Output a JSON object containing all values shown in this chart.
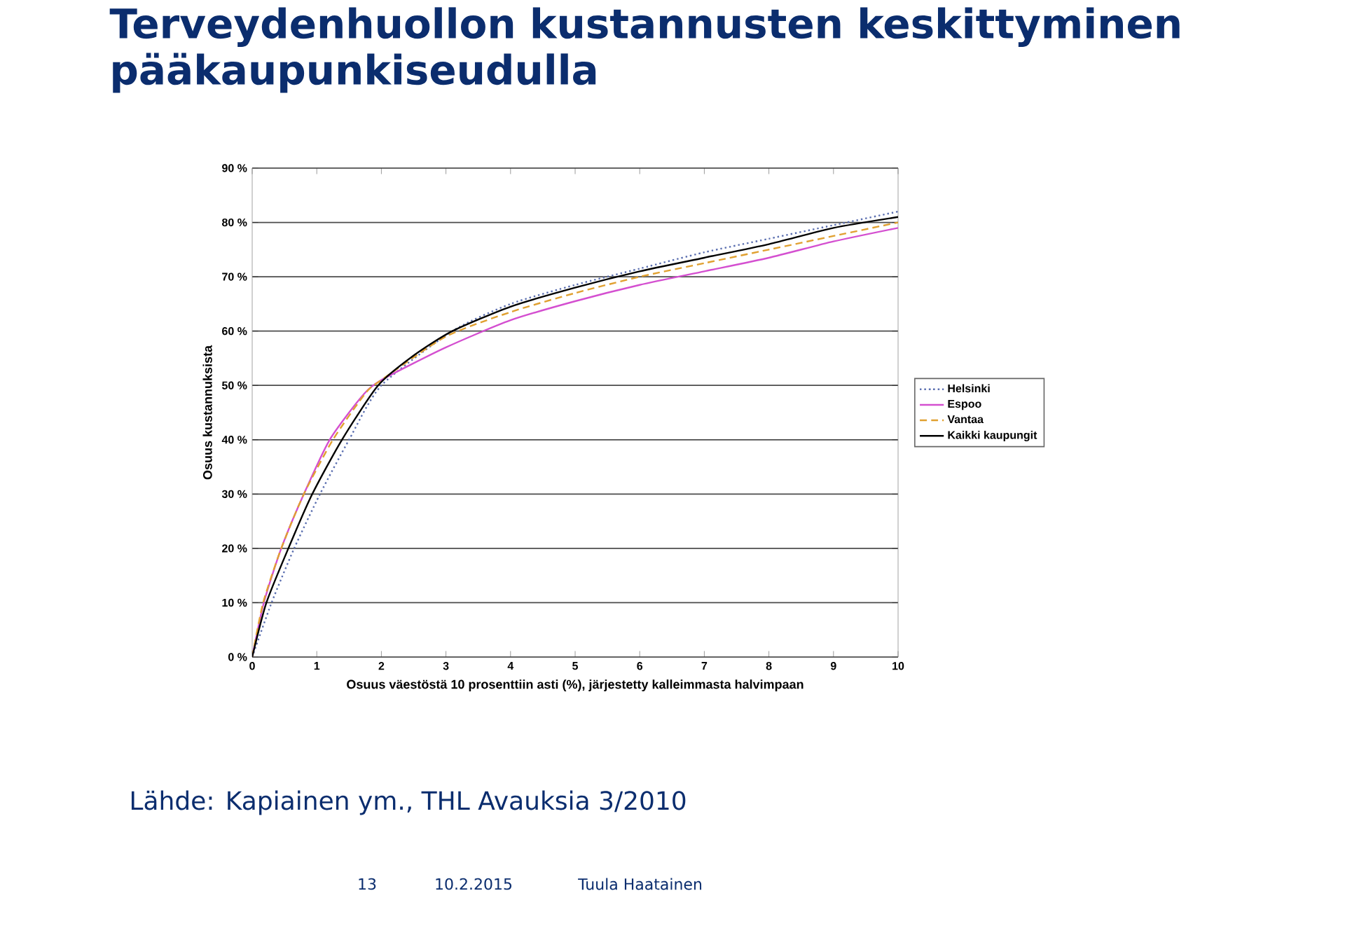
{
  "chart_data": {
    "type": "line",
    "title": "Terveydenhuollon kustannusten keskittyminen pääkaupunkiseudulla",
    "xlabel": "Osuus väestöstä 10 prosenttiin asti (%), järjestetty kalleimmasta halvimpaan",
    "ylabel": "Osuus kustannuksista",
    "xlim": [
      0,
      10
    ],
    "xticks": [
      0,
      1,
      2,
      3,
      4,
      5,
      6,
      7,
      8,
      9,
      10
    ],
    "ylim": [
      0,
      90
    ],
    "yticks": [
      {
        "value": 0,
        "label": "0 %"
      },
      {
        "value": 10,
        "label": "10 %"
      },
      {
        "value": 20,
        "label": "20 %"
      },
      {
        "value": 30,
        "label": "30 %"
      },
      {
        "value": 40,
        "label": "40 %"
      },
      {
        "value": 50,
        "label": "50 %"
      },
      {
        "value": 60,
        "label": "60 %"
      },
      {
        "value": 70,
        "label": "70 %"
      },
      {
        "value": 80,
        "label": "80 %"
      },
      {
        "value": 90,
        "label": "90 %"
      }
    ],
    "grid": "y",
    "legend": "right",
    "marker": "none",
    "series": [
      {
        "name": "Helsinki",
        "color": "#5b6fb0",
        "line_style": "dotted",
        "x": [
          0,
          0.3,
          0.65,
          1.05,
          1.5,
          2.0,
          3.1,
          4,
          5,
          6,
          7,
          8,
          9,
          10
        ],
        "values": [
          0,
          10,
          20,
          30,
          40,
          50,
          60,
          65,
          68.5,
          71.5,
          74.5,
          77,
          79.5,
          82
        ]
      },
      {
        "name": "Espoo",
        "color": "#d44fd0",
        "line_style": "solid",
        "x": [
          0,
          0.18,
          0.45,
          0.8,
          1.2,
          1.7,
          2,
          3,
          4,
          5,
          6,
          7,
          8,
          9,
          10
        ],
        "values": [
          0,
          10,
          20,
          30,
          40,
          48,
          51,
          57,
          62,
          65.5,
          68.5,
          71,
          73.5,
          76.5,
          79
        ]
      },
      {
        "name": "Vantaa",
        "color": "#e0a030",
        "line_style": "dashed",
        "x": [
          0,
          0.17,
          0.45,
          0.8,
          1.25,
          1.75,
          2,
          3,
          4,
          5,
          6,
          7,
          8,
          9,
          10
        ],
        "values": [
          0,
          10,
          20,
          30,
          40,
          48.5,
          51,
          59,
          63.5,
          67,
          70,
          72.5,
          75,
          77.5,
          80
        ]
      },
      {
        "name": "Kaikki kaupungit",
        "color": "#000000",
        "line_style": "solid",
        "x": [
          0,
          0.22,
          0.56,
          0.93,
          1.39,
          1.95,
          2.5,
          3.1,
          4,
          5,
          6,
          7,
          8,
          9,
          10
        ],
        "values": [
          0,
          10,
          20,
          30,
          40,
          50,
          55.5,
          60,
          64.5,
          68,
          71,
          73.5,
          76,
          79,
          81
        ]
      }
    ],
    "annotations": [
      "Lähde: Kapiainen ym., THL Avauksia 3/2010",
      "13",
      "10.2.2015",
      "Tuula Haatainen"
    ]
  }
}
